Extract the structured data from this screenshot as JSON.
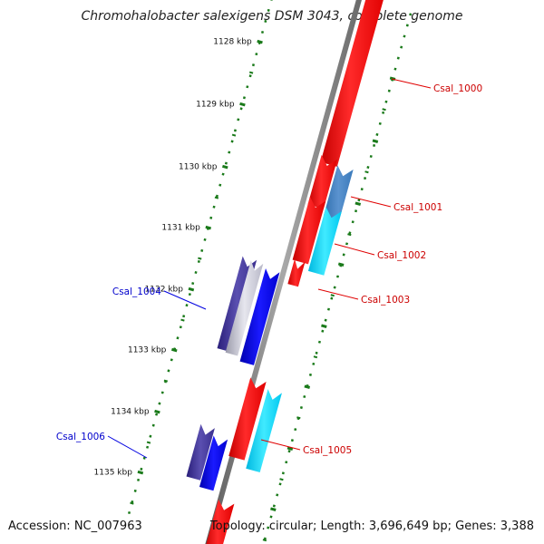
{
  "title": "Chromohalobacter salexigens DSM 3043, complete genome",
  "footer": {
    "accession": "Accession: NC_007963",
    "topology": "Topology: circular; Length: 3,696,649 bp; Genes: 3,388"
  },
  "colors": {
    "backbone": "#777777",
    "tick": "#1a7a1a",
    "forward_gene": "#ff0000",
    "reverse_gene": "#0000ff",
    "forward_label": "#cc0000",
    "reverse_label": "#0000cc",
    "cyan": "#00e0ff",
    "steel": "#3f7fbf",
    "navy": "#3a2f8f"
  },
  "ticks": [
    {
      "label": "1128 kbp"
    },
    {
      "label": "1129 kbp"
    },
    {
      "label": "1130 kbp"
    },
    {
      "label": "1131 kbp"
    },
    {
      "label": "1132 kbp"
    },
    {
      "label": "1133 kbp"
    },
    {
      "label": "1134 kbp"
    },
    {
      "label": "1135 kbp"
    }
  ],
  "genes": [
    {
      "name": "Csal_1000",
      "strand": "+"
    },
    {
      "name": "Csal_1001",
      "strand": "+"
    },
    {
      "name": "Csal_1002",
      "strand": "+"
    },
    {
      "name": "Csal_1003",
      "strand": "+"
    },
    {
      "name": "Csal_1004",
      "strand": "-"
    },
    {
      "name": "Csal_1005",
      "strand": "+"
    },
    {
      "name": "Csal_1006",
      "strand": "-"
    }
  ]
}
